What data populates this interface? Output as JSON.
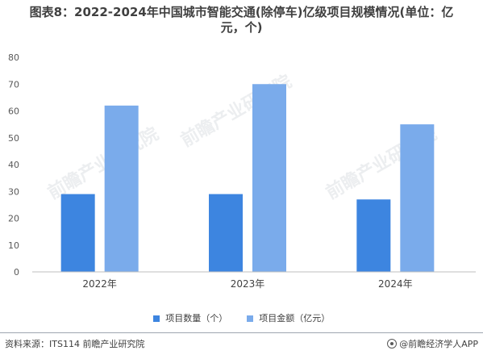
{
  "title_line1": "图表8：2022-2024年中国城市智能交通(除停车)亿级项目规模情况(单位：亿",
  "title_line2": "元，个)",
  "watermark": "前瞻产业研究院",
  "colors": {
    "series1": "#3d85e0",
    "series2": "#7aabeb",
    "axis": "#bfbfbf"
  },
  "chart_data": {
    "type": "bar",
    "title": "图表8：2022-2024年中国城市智能交通(除停车)亿级项目规模情况(单位：亿元，个)",
    "categories": [
      "2022年",
      "2023年",
      "2024年"
    ],
    "series": [
      {
        "name": "项目数量（个）",
        "values": [
          29,
          29,
          27
        ]
      },
      {
        "name": "项目金额（亿元）",
        "values": [
          62,
          70,
          55
        ]
      }
    ],
    "yticks": [
      0,
      10,
      20,
      30,
      40,
      50,
      60,
      70,
      80
    ],
    "ylim": [
      0,
      80
    ],
    "xlabel": "",
    "ylabel": "",
    "grid": false,
    "legend_position": "bottom"
  },
  "footer": {
    "source": "资料来源：ITS114 前瞻产业研究院",
    "brand": "@前瞻经济学人APP"
  }
}
